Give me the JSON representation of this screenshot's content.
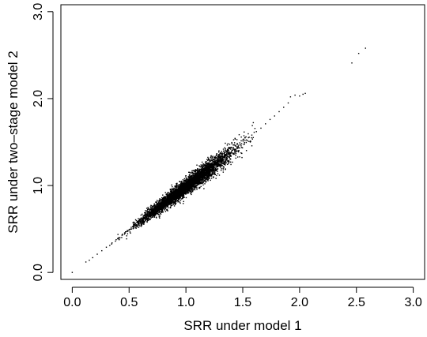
{
  "chart_data": {
    "type": "scatter",
    "title": "",
    "xlabel": "SRR under model 1",
    "ylabel": "SRR under two–stage model 2",
    "xlim": [
      -0.1,
      3.1
    ],
    "ylim": [
      -0.08,
      3.08
    ],
    "xticks": [
      0.0,
      0.5,
      1.0,
      1.5,
      2.0,
      2.5,
      3.0
    ],
    "xtick_labels": [
      "0.0",
      "0.5",
      "1.0",
      "1.5",
      "2.0",
      "2.5",
      "3.0"
    ],
    "yticks": [
      0.0,
      1.0,
      2.0,
      3.0
    ],
    "ytick_labels": [
      "0.0",
      "1.0",
      "2.0",
      "3.0"
    ],
    "grid": false,
    "legend": "none",
    "point_color": "#000000",
    "series": [
      {
        "points": [
          [
            0.0,
            0.0
          ],
          [
            0.12,
            0.12
          ],
          [
            0.15,
            0.14
          ],
          [
            0.18,
            0.17
          ],
          [
            0.22,
            0.21
          ],
          [
            0.26,
            0.25
          ],
          [
            0.3,
            0.29
          ],
          [
            0.33,
            0.31
          ],
          [
            0.35,
            0.34
          ],
          [
            0.38,
            0.36
          ],
          [
            0.4,
            0.39
          ],
          [
            0.42,
            0.4
          ],
          [
            0.44,
            0.43
          ],
          [
            0.46,
            0.44
          ],
          [
            0.48,
            0.47
          ],
          [
            0.5,
            0.49
          ],
          [
            0.52,
            0.5
          ],
          [
            0.54,
            0.53
          ],
          [
            0.56,
            0.55
          ],
          [
            0.58,
            0.57
          ],
          [
            0.6,
            0.58
          ],
          [
            0.62,
            0.61
          ],
          [
            0.64,
            0.62
          ],
          [
            0.66,
            0.65
          ],
          [
            0.68,
            0.67
          ],
          [
            0.7,
            0.69
          ],
          [
            0.72,
            0.7
          ],
          [
            0.74,
            0.73
          ],
          [
            0.76,
            0.74
          ],
          [
            0.78,
            0.77
          ],
          [
            0.8,
            0.79
          ],
          [
            0.82,
            0.81
          ],
          [
            0.84,
            0.82
          ],
          [
            0.86,
            0.85
          ],
          [
            0.88,
            0.87
          ],
          [
            0.9,
            0.89
          ],
          [
            0.92,
            0.9
          ],
          [
            0.94,
            0.93
          ],
          [
            0.96,
            0.95
          ],
          [
            0.98,
            0.97
          ],
          [
            1.0,
            0.99
          ],
          [
            1.02,
            1.01
          ],
          [
            1.04,
            1.03
          ],
          [
            1.06,
            1.05
          ],
          [
            1.08,
            1.07
          ],
          [
            1.1,
            1.09
          ],
          [
            1.12,
            1.11
          ],
          [
            1.14,
            1.13
          ],
          [
            1.16,
            1.15
          ],
          [
            1.18,
            1.17
          ],
          [
            1.2,
            1.19
          ],
          [
            1.22,
            1.21
          ],
          [
            1.24,
            1.23
          ],
          [
            1.26,
            1.25
          ],
          [
            1.28,
            1.27
          ],
          [
            1.3,
            1.29
          ],
          [
            1.32,
            1.31
          ],
          [
            1.34,
            1.33
          ],
          [
            1.36,
            1.35
          ],
          [
            1.38,
            1.37
          ],
          [
            1.4,
            1.39
          ],
          [
            1.43,
            1.42
          ],
          [
            1.46,
            1.45
          ],
          [
            1.49,
            1.48
          ],
          [
            1.52,
            1.52
          ],
          [
            1.55,
            1.55
          ],
          [
            1.58,
            1.58
          ],
          [
            1.62,
            1.62
          ],
          [
            1.66,
            1.66
          ],
          [
            1.7,
            1.71
          ],
          [
            1.74,
            1.76
          ],
          [
            1.78,
            1.8
          ],
          [
            1.82,
            1.85
          ],
          [
            1.86,
            1.9
          ],
          [
            1.9,
            1.95
          ],
          [
            1.92,
            2.02
          ],
          [
            1.96,
            2.04
          ],
          [
            2.0,
            2.03
          ],
          [
            2.03,
            2.05
          ],
          [
            2.05,
            2.06
          ],
          [
            2.46,
            2.41
          ],
          [
            2.52,
            2.52
          ],
          [
            2.58,
            2.58
          ]
        ]
      }
    ],
    "cloud": {
      "description_free_model": true,
      "x_min": 0.12,
      "x_max": 1.62,
      "center_x": 1.0,
      "center_y": 1.0,
      "point_count": 4200
    }
  }
}
